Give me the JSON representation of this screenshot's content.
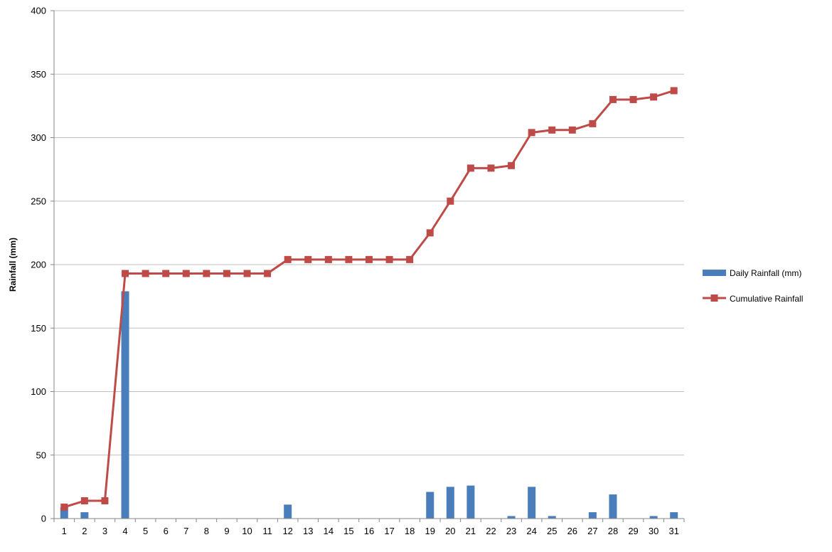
{
  "chart_data": {
    "type": "bar+line",
    "categories": [
      "1",
      "2",
      "3",
      "4",
      "5",
      "6",
      "7",
      "8",
      "9",
      "10",
      "11",
      "12",
      "13",
      "14",
      "15",
      "16",
      "17",
      "18",
      "19",
      "20",
      "21",
      "22",
      "23",
      "24",
      "25",
      "26",
      "27",
      "28",
      "29",
      "30",
      "31"
    ],
    "ylabel": "Rainfall (mm)",
    "ylim": [
      0,
      400
    ],
    "y_ticks": [
      "0",
      "50",
      "100",
      "150",
      "200",
      "250",
      "300",
      "350",
      "400"
    ],
    "grid": true,
    "legend_position": "right",
    "series": [
      {
        "name": "Daily Rainfall (mm)",
        "type": "bar",
        "color": "#4a7ebb",
        "values": [
          9,
          5,
          0,
          179,
          0,
          0,
          0,
          0,
          0,
          0,
          0,
          11,
          0,
          0,
          0,
          0,
          0,
          0,
          21,
          25,
          26,
          0,
          2,
          25,
          2,
          0,
          5,
          19,
          0,
          2,
          5
        ]
      },
      {
        "name": "Cumulative Rainfall",
        "type": "line",
        "color": "#be4b48",
        "marker": "square",
        "values": [
          9,
          14,
          14,
          193,
          193,
          193,
          193,
          193,
          193,
          193,
          193,
          204,
          204,
          204,
          204,
          204,
          204,
          204,
          225,
          250,
          276,
          276,
          278,
          304,
          306,
          306,
          311,
          330,
          330,
          332,
          337
        ]
      }
    ]
  }
}
